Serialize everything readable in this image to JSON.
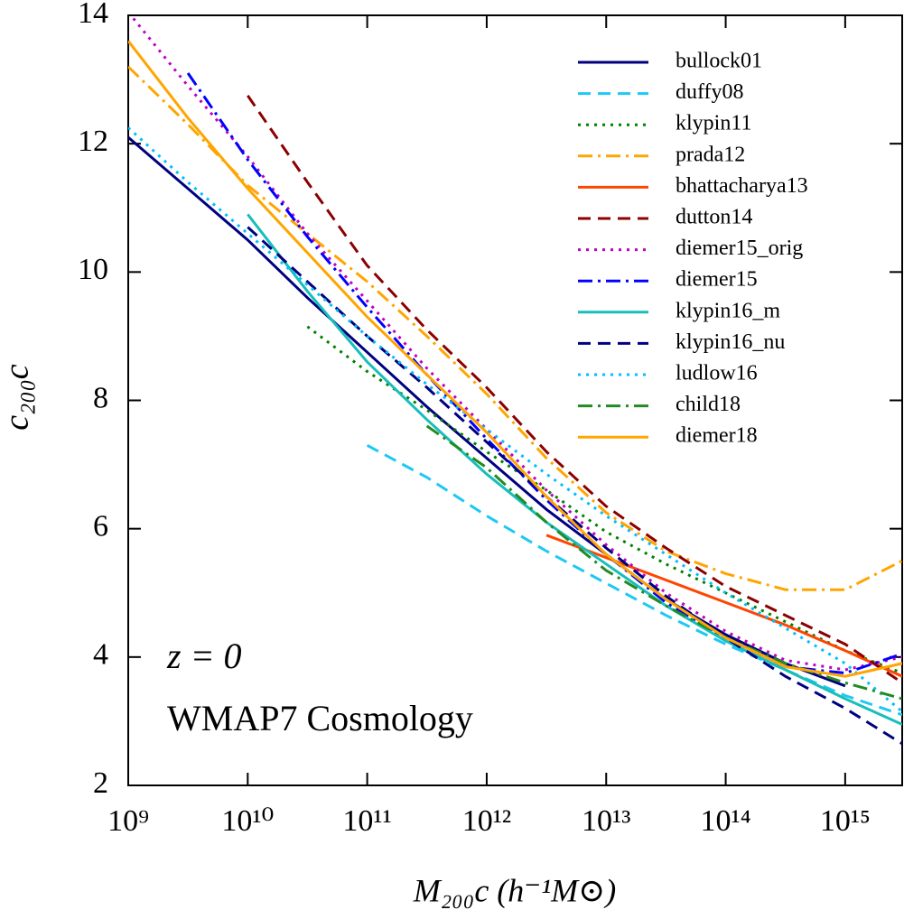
{
  "chart_data": {
    "type": "line",
    "x_label": "M₂₀₀c (h⁻¹M⊙)",
    "y_label": "c₂₀₀c",
    "annotations": [
      "z = 0",
      "WMAP7 Cosmology"
    ],
    "xlog": true,
    "legend": "upper right",
    "x": [
      1000000000.0,
      3160000000.0,
      10000000000.0,
      31600000000.0,
      100000000000.0,
      316000000000.0,
      1000000000000.0,
      3160000000000.0,
      10000000000000.0,
      31600000000000.0,
      100000000000000.0,
      316000000000000.0,
      1000000000000000.0,
      3000000000000000.0
    ],
    "xlim": [
      1000000000.0,
      3000000000000000.0
    ],
    "ylim": [
      2,
      14
    ],
    "xticks": [
      {
        "value": 1000000000.0,
        "label": "10⁹"
      },
      {
        "value": 10000000000.0,
        "label": "10¹⁰"
      },
      {
        "value": 100000000000.0,
        "label": "10¹¹"
      },
      {
        "value": 1000000000000.0,
        "label": "10¹²"
      },
      {
        "value": 10000000000000.0,
        "label": "10¹³"
      },
      {
        "value": 100000000000000.0,
        "label": "10¹⁴"
      },
      {
        "value": 1000000000000000.0,
        "label": "10¹⁵"
      }
    ],
    "yticks": [
      2,
      4,
      6,
      8,
      10,
      12,
      14
    ],
    "series": [
      {
        "name": "bullock01",
        "color": "#000080",
        "style": "solid",
        "values": [
          12.1,
          11.3,
          10.5,
          9.6,
          8.75,
          7.9,
          7.1,
          6.3,
          5.6,
          4.9,
          4.35,
          3.9,
          3.55,
          null
        ]
      },
      {
        "name": "duffy08",
        "color": "#1ec8f5",
        "style": "dashed",
        "values": [
          null,
          null,
          null,
          null,
          7.3,
          6.8,
          6.2,
          5.65,
          5.15,
          4.65,
          4.2,
          3.8,
          3.4,
          3.1
        ]
      },
      {
        "name": "klypin11",
        "color": "#008000",
        "style": "dotted",
        "values": [
          null,
          null,
          null,
          9.15,
          8.45,
          7.85,
          7.2,
          6.6,
          5.95,
          5.45,
          5.0,
          4.55,
          4.1,
          3.75
        ]
      },
      {
        "name": "prada12",
        "color": "#ffa500",
        "style": "dashdot",
        "values": [
          13.2,
          12.3,
          11.35,
          10.6,
          9.85,
          9.0,
          8.1,
          7.1,
          6.25,
          5.65,
          5.3,
          5.05,
          5.05,
          5.5
        ]
      },
      {
        "name": "bhattacharya13",
        "color": "#ff4500",
        "style": "solid",
        "values": [
          null,
          null,
          null,
          null,
          null,
          null,
          null,
          5.9,
          5.55,
          5.2,
          4.85,
          4.5,
          4.1,
          3.7
        ]
      },
      {
        "name": "dutton14",
        "color": "#8b0000",
        "style": "dashed",
        "values": [
          null,
          null,
          12.75,
          11.4,
          10.1,
          9.1,
          8.2,
          7.2,
          6.35,
          5.7,
          5.1,
          4.65,
          4.2,
          3.6
        ]
      },
      {
        "name": "diemer15_orig",
        "color": "#c000c0",
        "style": "dotted",
        "values": [
          14.05,
          12.9,
          11.8,
          10.6,
          9.55,
          8.5,
          7.55,
          6.6,
          5.75,
          5.0,
          4.4,
          3.95,
          3.8,
          4.0
        ]
      },
      {
        "name": "diemer15",
        "color": "#0000ff",
        "style": "dashdot",
        "values": [
          null,
          13.1,
          11.75,
          10.55,
          9.45,
          8.4,
          7.4,
          6.45,
          5.6,
          4.85,
          4.3,
          3.85,
          3.75,
          4.05
        ]
      },
      {
        "name": "klypin16_m",
        "color": "#17bebb",
        "style": "solid",
        "values": [
          null,
          null,
          10.9,
          9.7,
          8.6,
          7.7,
          6.85,
          6.1,
          5.45,
          4.8,
          4.25,
          3.8,
          3.35,
          2.95
        ]
      },
      {
        "name": "klypin16_nu",
        "color": "#000080",
        "style": "dashed",
        "values": [
          null,
          null,
          10.7,
          9.85,
          9.0,
          8.2,
          7.35,
          6.5,
          5.7,
          4.95,
          4.3,
          3.7,
          3.2,
          2.65
        ]
      },
      {
        "name": "ludlow16",
        "color": "#00bfff",
        "style": "dotted",
        "values": [
          12.25,
          11.4,
          10.6,
          9.8,
          9.0,
          8.25,
          7.55,
          6.85,
          6.2,
          5.6,
          5.0,
          4.45,
          3.9,
          3.15
        ]
      },
      {
        "name": "child18",
        "color": "#228b22",
        "style": "dashdot",
        "values": [
          null,
          null,
          null,
          null,
          null,
          7.6,
          6.95,
          6.1,
          5.35,
          4.8,
          4.3,
          3.9,
          3.6,
          3.35
        ]
      },
      {
        "name": "diemer18",
        "color": "#ffa500",
        "style": "solid",
        "values": [
          13.6,
          12.4,
          11.3,
          10.3,
          9.3,
          8.4,
          7.5,
          6.5,
          5.6,
          4.9,
          4.3,
          3.85,
          3.7,
          3.9
        ]
      }
    ]
  }
}
